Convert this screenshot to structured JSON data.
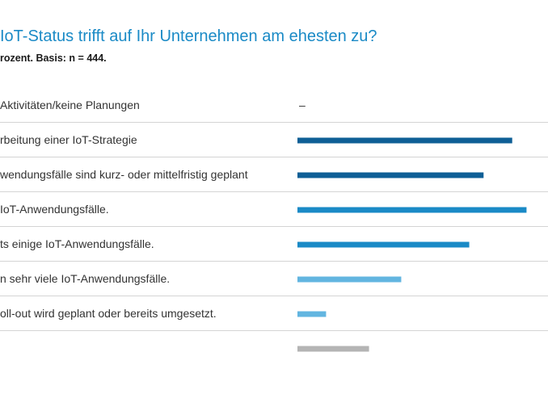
{
  "chart_data": {
    "type": "bar",
    "orientation": "horizontal",
    "title": "IoT-Status trifft auf Ihr Unternehmen am ehesten zu?",
    "subtitle": "rozent. Basis: n = 444.",
    "xlim": [
      0,
      35
    ],
    "categories": [
      "Aktivitäten/keine Planungen",
      "rbeitung einer IoT-Strategie",
      "wendungsfälle sind kurz- oder mittelfristig geplant",
      "IoT-Anwendungsfälle.",
      "ts einige IoT-Anwendungsfälle.",
      "n sehr viele IoT-Anwendungsfälle.",
      "oll-out wird geplant oder bereits umgesetzt.",
      ""
    ],
    "values": [
      null,
      30,
      26,
      32,
      24,
      14.5,
      4,
      10
    ],
    "missing_marker": "–",
    "colors": [
      "#0f5f96",
      "#0f5f96",
      "#0f5f96",
      "#1a8ac6",
      "#1a8ac6",
      "#62b5e0",
      "#62b5e0",
      "#b4b4b4"
    ]
  }
}
